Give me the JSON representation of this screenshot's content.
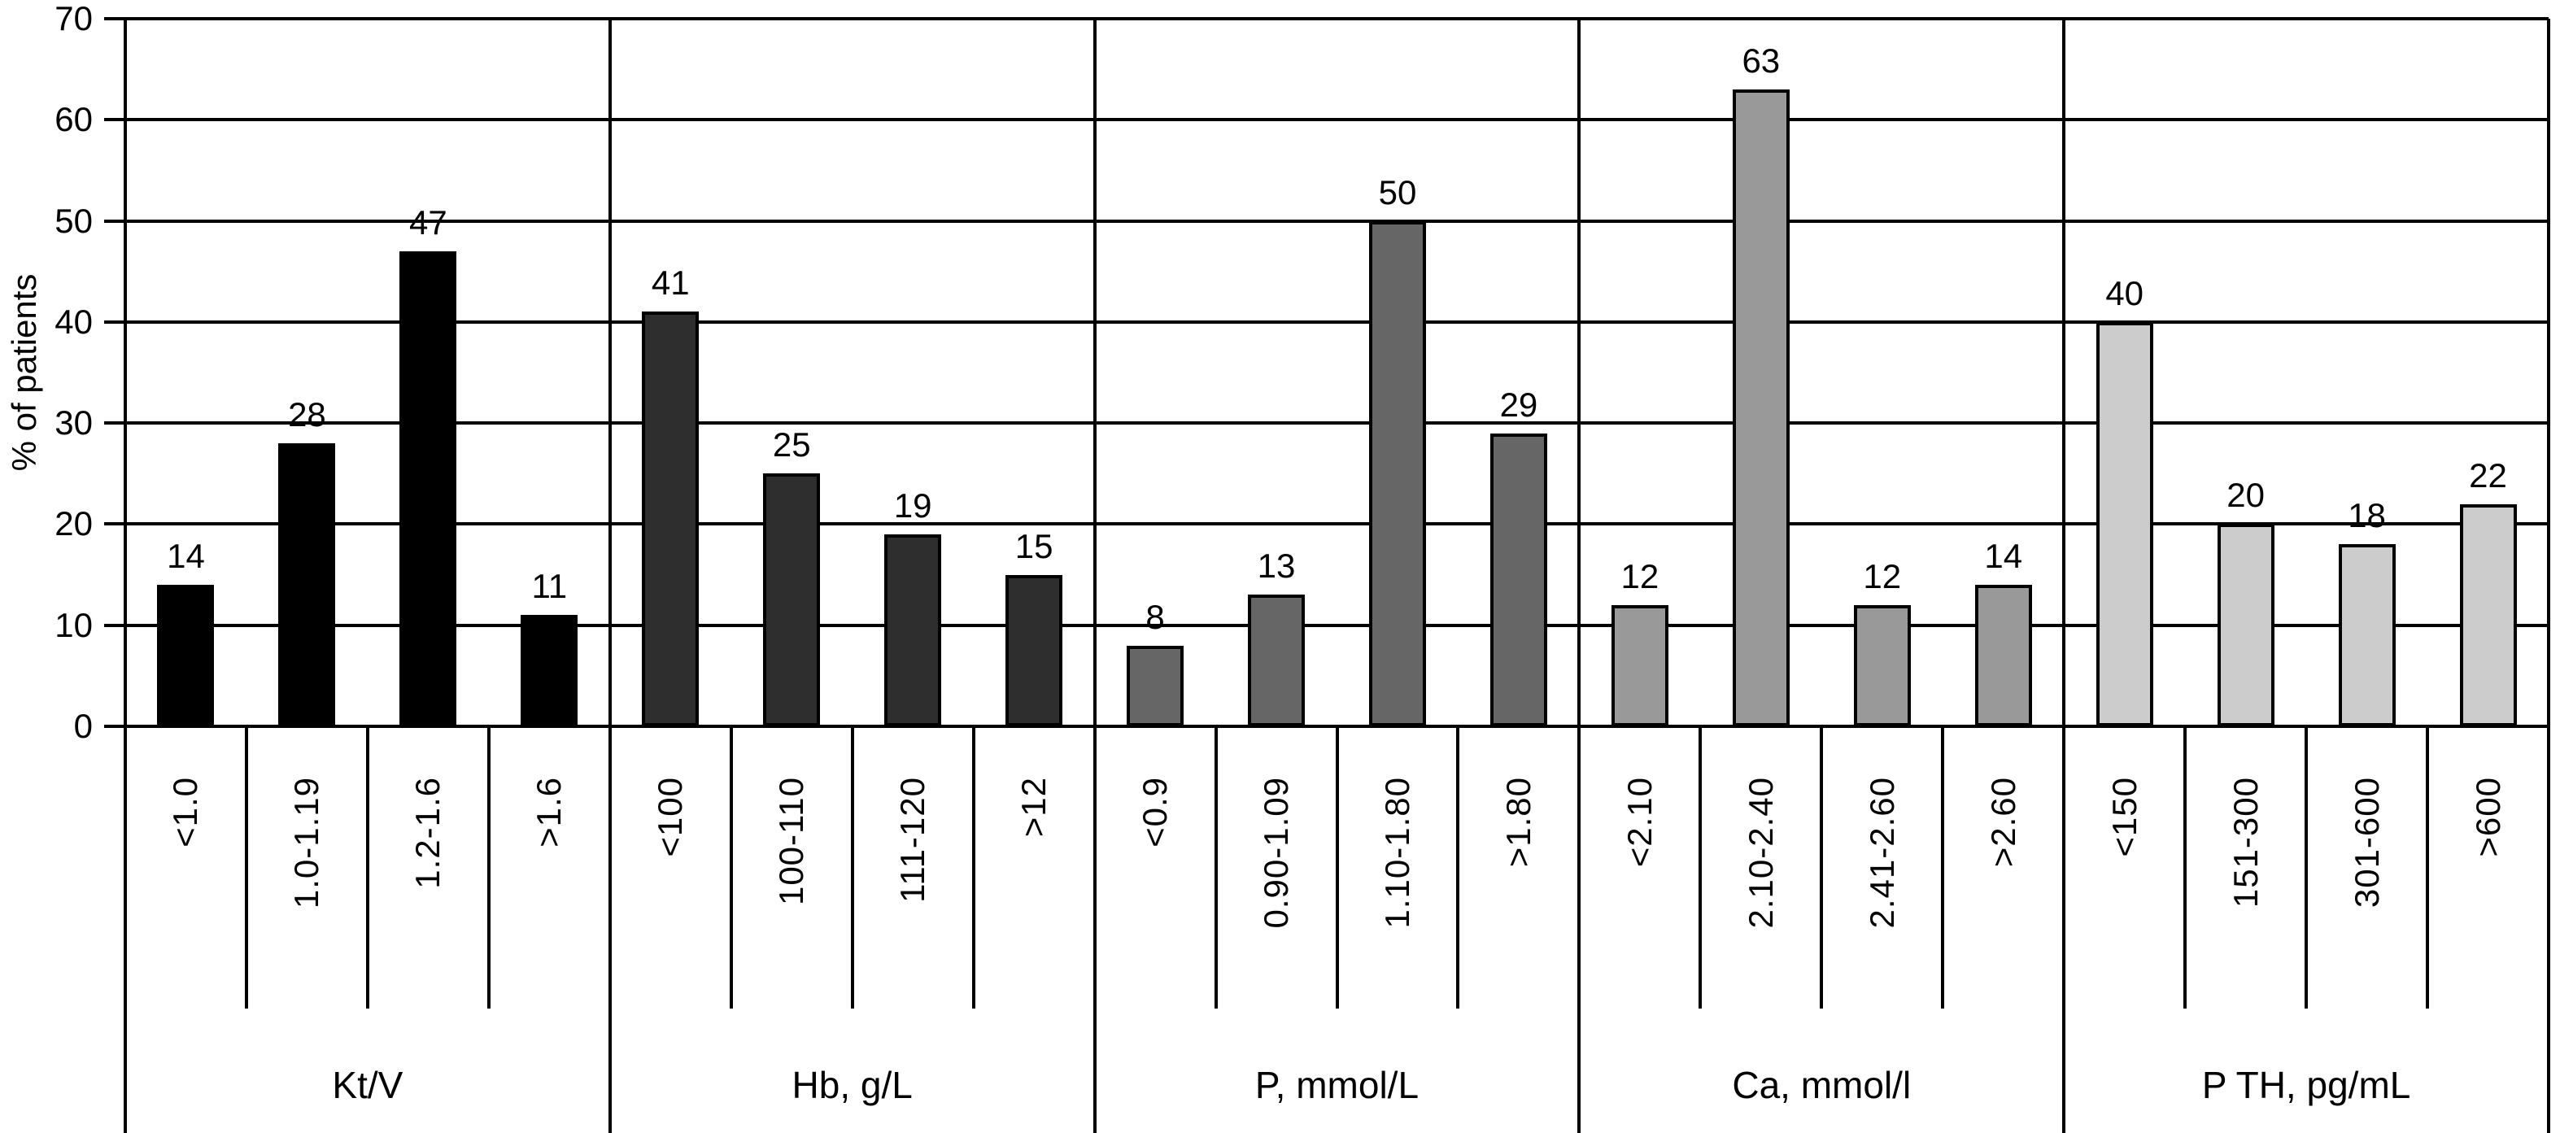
{
  "chart_data": {
    "type": "bar",
    "title": "",
    "ylabel": "% of patients",
    "ylim": [
      0,
      70
    ],
    "yticks": [
      0,
      10,
      20,
      30,
      40,
      50,
      60,
      70
    ],
    "grid": "horizontal",
    "legend": "none",
    "bar_outline_color": "#000000",
    "groups": [
      {
        "label": "Kt/V",
        "color": "#000000",
        "categories": [
          "<1.0",
          "1.0-1.19",
          "1.2-1.6",
          ">1.6"
        ],
        "values": [
          14,
          28,
          47,
          11
        ]
      },
      {
        "label": "Hb, g/L",
        "color": "#2e2e2e",
        "categories": [
          "<100",
          "100-110",
          "111-120",
          ">12"
        ],
        "values": [
          41,
          25,
          19,
          15
        ]
      },
      {
        "label": "P, mmol/L",
        "color": "#666666",
        "categories": [
          "<0.9",
          "0.90-1.09",
          "1.10-1.80",
          ">1.80"
        ],
        "values": [
          8,
          13,
          50,
          29
        ]
      },
      {
        "label": "Ca, mmol/l",
        "color": "#999999",
        "categories": [
          "<2.10",
          "2.10-2.40",
          "2.41-2.60",
          ">2.60"
        ],
        "values": [
          12,
          63,
          12,
          14
        ]
      },
      {
        "label": "P TH, pg/mL",
        "color": "#cccccc",
        "categories": [
          "<150",
          "151-300",
          "301-600",
          ">600"
        ],
        "values": [
          40,
          20,
          18,
          22
        ]
      }
    ]
  }
}
